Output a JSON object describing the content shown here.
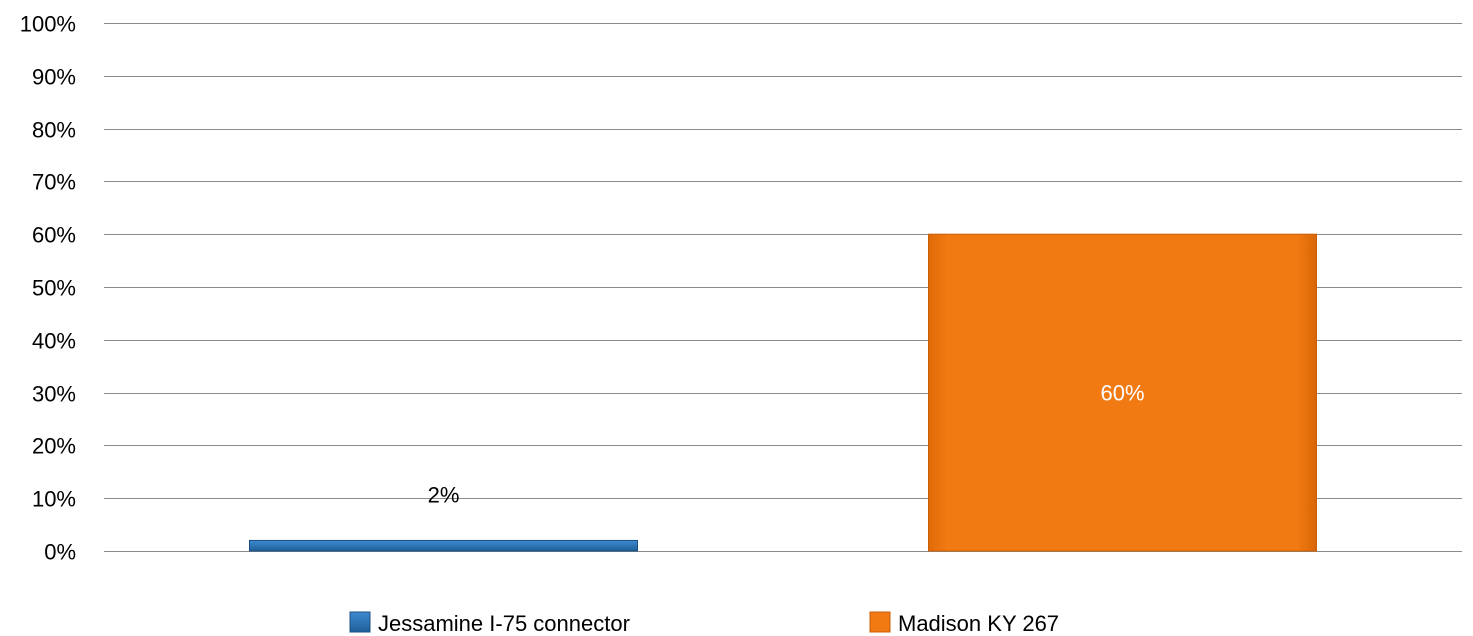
{
  "chart_data": {
    "type": "bar",
    "categories": [
      "Jessamine I-75 connector",
      "Madison KY 267"
    ],
    "series": [
      {
        "name": "Jessamine I-75 connector",
        "values": [
          2,
          null
        ],
        "color": "#2e75b6"
      },
      {
        "name": "Madison KY 267",
        "values": [
          null,
          60
        ],
        "color": "#f07810"
      }
    ],
    "data_labels": [
      "2%",
      "60%"
    ],
    "y_ticks": [
      "0%",
      "10%",
      "20%",
      "30%",
      "40%",
      "50%",
      "60%",
      "70%",
      "80%",
      "90%",
      "100%"
    ],
    "ylim": [
      0,
      100
    ],
    "grid": true,
    "legend_position": "bottom",
    "colors": {
      "gridline": "#8c8c8c",
      "text": "#000000",
      "label_inside": "#ffffff"
    }
  }
}
